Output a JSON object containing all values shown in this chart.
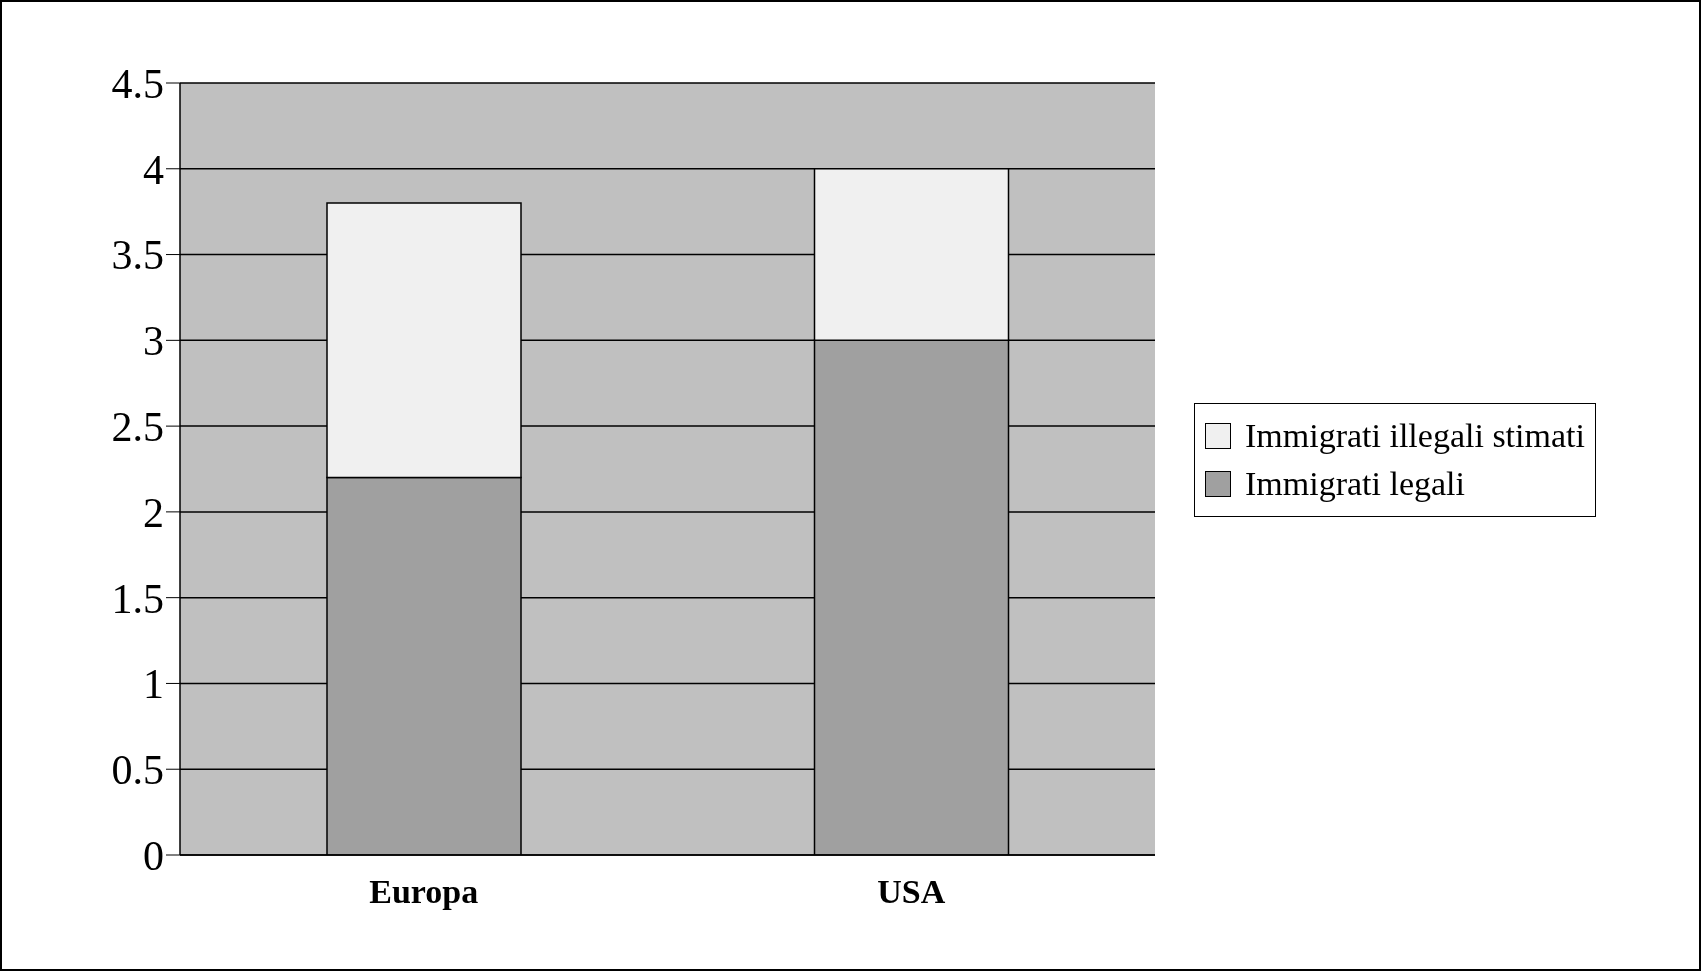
{
  "chart_data": {
    "type": "bar",
    "stacked": true,
    "categories": [
      "Europa",
      "USA"
    ],
    "series": [
      {
        "name": "Immigrati legali",
        "color": "#a0a0a0",
        "values": [
          2.2,
          3
        ]
      },
      {
        "name": "Immigrati illegali stimati",
        "color": "#f0f0f0",
        "values": [
          1.6,
          1
        ]
      }
    ],
    "ylim": [
      0,
      4.5
    ],
    "yticks": [
      0,
      0.5,
      1,
      1.5,
      2,
      2.5,
      3,
      3.5,
      4,
      4.5
    ],
    "grid": "y",
    "legend": "right"
  }
}
